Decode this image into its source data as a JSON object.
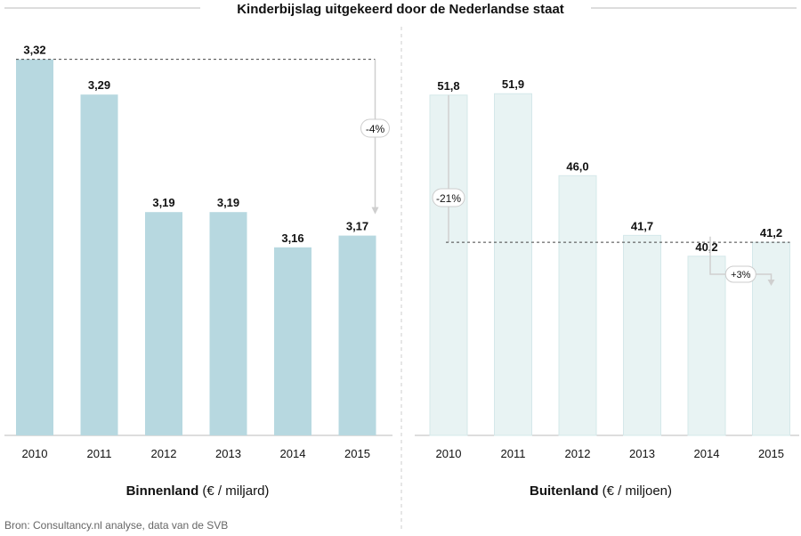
{
  "title": "Kinderbijslag uitgekeerd door de Nederlandse staat",
  "source": "Bron: Consultancy.nl analyse, data van de SVB",
  "colors": {
    "left_bar": "#b7d8e0",
    "right_bar": "#e8f3f3",
    "right_bar_stroke": "#d5e8ea",
    "line": "#bbbbbb",
    "dashed": "#444444"
  },
  "chart_data": [
    {
      "type": "bar",
      "categories": [
        "2010",
        "2011",
        "2012",
        "2013",
        "2014",
        "2015"
      ],
      "values": [
        3.32,
        3.29,
        3.19,
        3.19,
        3.16,
        3.17
      ],
      "value_labels": [
        "3,32",
        "3,29",
        "3,19",
        "3,19",
        "3,16",
        "3,17"
      ],
      "xlabel_bold": "Binnenland",
      "xlabel_rest": " (€ / miljard)",
      "annotation": "-4%"
    },
    {
      "type": "bar",
      "categories": [
        "2010",
        "2011",
        "2012",
        "2013",
        "2014",
        "2015"
      ],
      "values": [
        51.8,
        51.9,
        46.0,
        41.7,
        40.2,
        41.2
      ],
      "value_labels": [
        "51,8",
        "51,9",
        "46,0",
        "41,7",
        "40,2",
        "41,2"
      ],
      "xlabel_bold": "Buitenland",
      "xlabel_rest": " (€ / miljoen)",
      "annotations": [
        "-21%",
        "+3%"
      ]
    }
  ]
}
